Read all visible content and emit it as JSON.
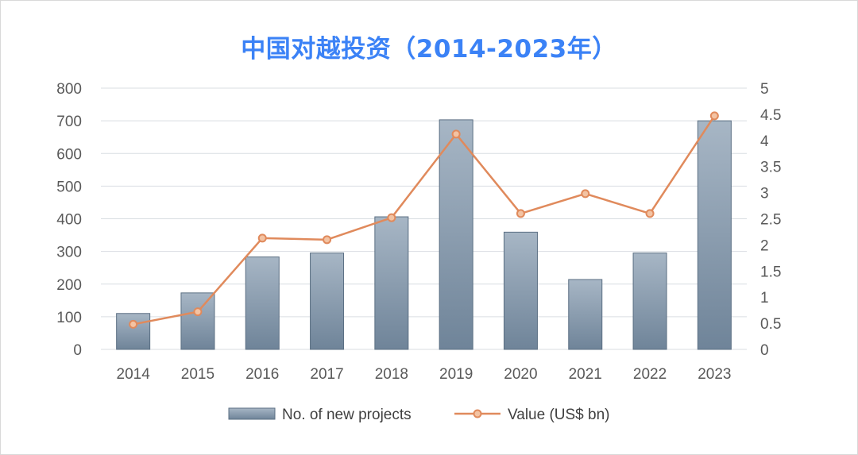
{
  "chart_data": {
    "type": "bar",
    "title": "中国对越投资（2014-2023年）",
    "categories": [
      "2014",
      "2015",
      "2016",
      "2017",
      "2018",
      "2019",
      "2020",
      "2021",
      "2022",
      "2023"
    ],
    "series": [
      {
        "name": "No. of new projects",
        "type": "bar",
        "axis": "left",
        "values": [
          110,
          173,
          283,
          295,
          406,
          703,
          359,
          214,
          295,
          700
        ]
      },
      {
        "name": "Value (US$ bn)",
        "type": "line",
        "axis": "right",
        "values": [
          0.48,
          0.72,
          2.13,
          2.1,
          2.52,
          4.12,
          2.6,
          2.98,
          2.6,
          4.47
        ]
      }
    ],
    "left_axis": {
      "min": 0,
      "max": 800,
      "ticks": [
        "0",
        "100",
        "200",
        "300",
        "400",
        "500",
        "600",
        "700",
        "800"
      ]
    },
    "right_axis": {
      "min": 0,
      "max": 5,
      "ticks": [
        "0",
        "0.5",
        "1",
        "1.5",
        "2",
        "2.5",
        "3",
        "3.5",
        "4",
        "4.5",
        "5"
      ]
    },
    "grid": true,
    "legend_position": "bottom",
    "colors": {
      "bar_top": "#a7b6c5",
      "bar_bottom": "#6f8499",
      "bar_stroke": "#5b6f83",
      "line": "#e08a5c",
      "marker_fill": "#f3c3a3",
      "title": "#3b82f6",
      "grid": "#d9dde2"
    }
  }
}
